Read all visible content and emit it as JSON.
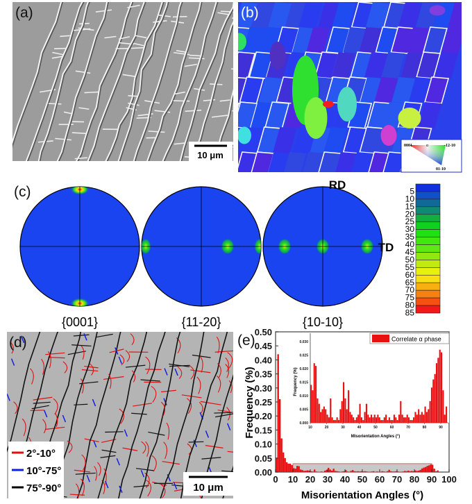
{
  "panels": {
    "a": {
      "label": "(a)",
      "scale_bar": "10 μm"
    },
    "b": {
      "label": "(b)",
      "ipf_legend": {
        "corner_0001": "0001",
        "symbol": "α",
        "corner_12_10": "-12-10",
        "corner_01_10": "01-10"
      }
    },
    "c": {
      "label": "(c)",
      "rd": "RD",
      "td": "TD",
      "poles": [
        "{0001}",
        "{11-20}",
        "{10-10}"
      ],
      "colorbar_ticks": [
        "5",
        "10",
        "15",
        "20",
        "25",
        "30",
        "35",
        "40",
        "45",
        "50",
        "55",
        "60",
        "65",
        "70",
        "75",
        "80",
        "85"
      ],
      "colorbar_colors": [
        "#1030e0",
        "#1050c8",
        "#106a98",
        "#108a70",
        "#10b040",
        "#10d020",
        "#20e010",
        "#40e810",
        "#60e810",
        "#90e810",
        "#c0ea10",
        "#e8f010",
        "#f8e010",
        "#f8b010",
        "#f88010",
        "#f85010",
        "#f01818"
      ]
    },
    "d": {
      "label": "(d)",
      "scale_bar": "10 μm",
      "legend": [
        {
          "label": "2°-10°",
          "color": "#e01010"
        },
        {
          "label": "10°-75°",
          "color": "#1020e0"
        },
        {
          "label": "75°-90°",
          "color": "#000000"
        }
      ]
    }
  },
  "chart_data": [
    {
      "name": "main",
      "label": "(e)",
      "type": "bar",
      "xlabel": "Misorientation Angles (°)",
      "ylabel": "Frequency (%)",
      "xlim": [
        0,
        100
      ],
      "ylim": [
        0,
        0.5
      ],
      "xticks": [
        "0",
        "10",
        "20",
        "30",
        "40",
        "50",
        "60",
        "70",
        "80",
        "90",
        "100"
      ],
      "yticks": [
        "0.00",
        "0.05",
        "0.10",
        "0.15",
        "0.20",
        "0.25",
        "0.30",
        "0.35",
        "0.40",
        "0.45",
        "0.50"
      ],
      "legend": {
        "label": "Correlate α phase",
        "position": "top-right"
      },
      "color": "#e81010",
      "bin_width": 1,
      "x_start": 0,
      "values": [
        0.05,
        0.42,
        0.26,
        0.12,
        0.07,
        0.05,
        0.035,
        0.03,
        0.03,
        0.025,
        0.014,
        0.012,
        0.022,
        0.021,
        0.009,
        0.007,
        0.004,
        0.005,
        0.006,
        0.005,
        0.003,
        0.002,
        0.009,
        0.002,
        0.001,
        0.001,
        0.002,
        0.001,
        0.005,
        0.008,
        0.015,
        0.009,
        0.005,
        0.012,
        0.004,
        0.003,
        0.002,
        0.001,
        0.002,
        0.003,
        0.007,
        0.002,
        0.001,
        0.004,
        0.007,
        0.003,
        0.002,
        0.003,
        0.002,
        0.003,
        0.002,
        0.003,
        0.002,
        0.001,
        0.001,
        0.002,
        0.003,
        0.001,
        0.002,
        0.001,
        0.001,
        0.003,
        0.002,
        0.001,
        0.003,
        0.008,
        0.003,
        0.002,
        0.002,
        0.003,
        0.002,
        0.001,
        0.001,
        0.002,
        0.004,
        0.003,
        0.005,
        0.003,
        0.004,
        0.003,
        0.006,
        0.004,
        0.005,
        0.008,
        0.013,
        0.016,
        0.018,
        0.022,
        0.024,
        0.027,
        0.026,
        0.012,
        0.003,
        0.006
      ],
      "highlight_range": {
        "x": [
          10,
          90
        ],
        "y": [
          0,
          0.03
        ]
      }
    },
    {
      "name": "inset",
      "type": "bar",
      "xlabel": "Misorientation Angles (°)",
      "ylabel": "Frequency (%)",
      "xlim": [
        10,
        93
      ],
      "ylim": [
        0,
        0.032
      ],
      "xticks": [
        "10",
        "20",
        "30",
        "40",
        "50",
        "60",
        "70",
        "80",
        "90"
      ],
      "yticks": [
        "0.000",
        "0.005",
        "0.010",
        "0.015",
        "0.020",
        "0.025",
        "0.030"
      ],
      "color": "#e81010",
      "bin_width": 1,
      "x_start": 10,
      "values": [
        0.014,
        0.012,
        0.022,
        0.021,
        0.009,
        0.007,
        0.004,
        0.005,
        0.006,
        0.005,
        0.003,
        0.002,
        0.009,
        0.002,
        0.001,
        0.001,
        0.002,
        0.001,
        0.005,
        0.008,
        0.015,
        0.009,
        0.005,
        0.012,
        0.004,
        0.003,
        0.002,
        0.001,
        0.002,
        0.003,
        0.007,
        0.002,
        0.001,
        0.004,
        0.007,
        0.003,
        0.002,
        0.003,
        0.002,
        0.003,
        0.002,
        0.003,
        0.002,
        0.001,
        0.001,
        0.002,
        0.003,
        0.001,
        0.002,
        0.001,
        0.001,
        0.003,
        0.002,
        0.001,
        0.003,
        0.008,
        0.003,
        0.002,
        0.002,
        0.003,
        0.002,
        0.001,
        0.001,
        0.002,
        0.004,
        0.003,
        0.005,
        0.003,
        0.004,
        0.003,
        0.006,
        0.004,
        0.005,
        0.008,
        0.013,
        0.016,
        0.018,
        0.022,
        0.024,
        0.027,
        0.026,
        0.012,
        0.003,
        0.006
      ]
    }
  ]
}
